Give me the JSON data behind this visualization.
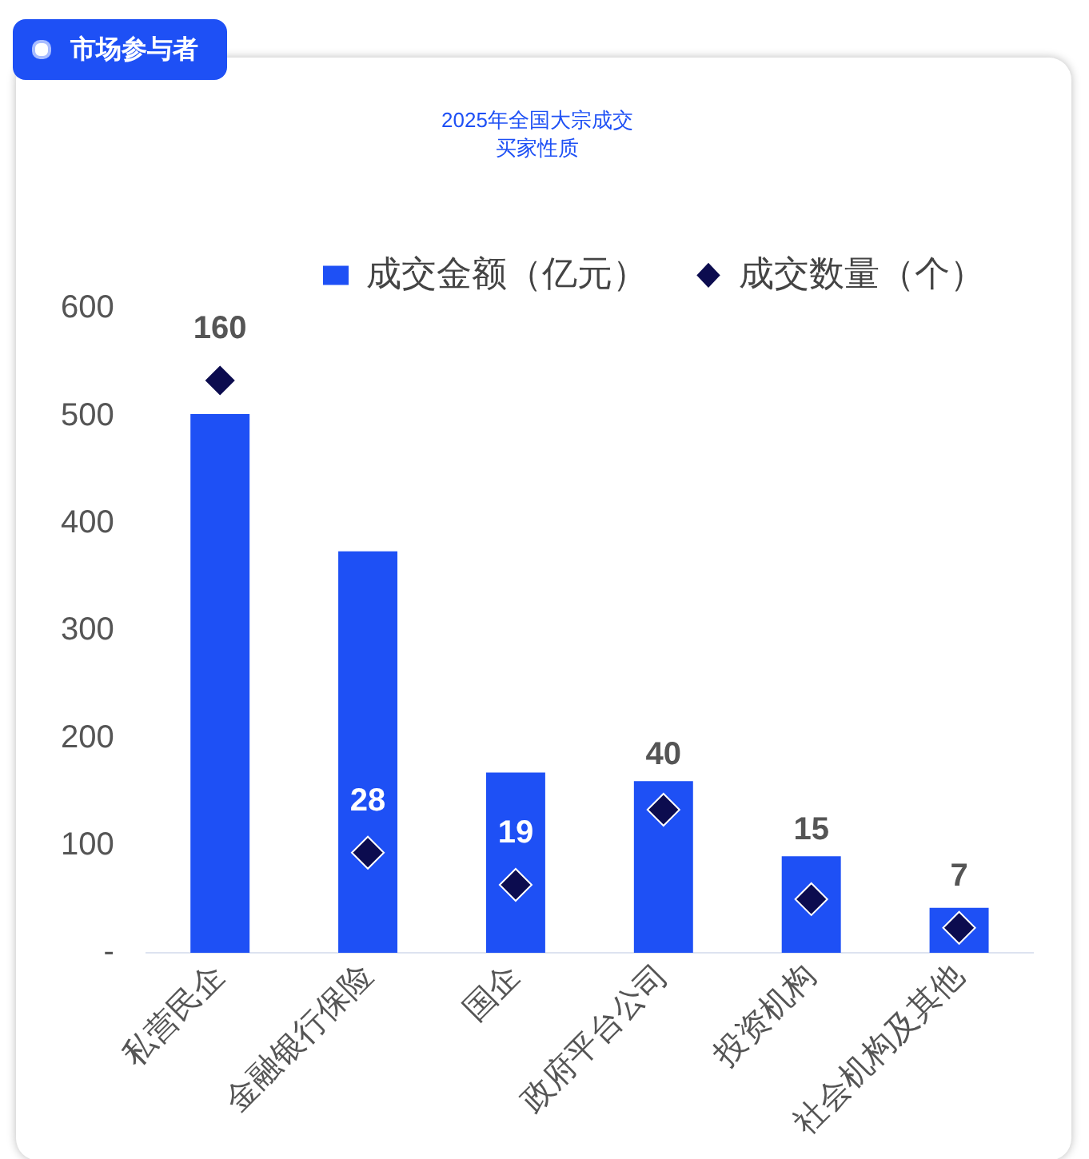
{
  "chart_data": {
    "type": "bar",
    "title": "2025年全国大宗成交",
    "subtitle": "买家性质",
    "annotations": [
      "市场参与者"
    ],
    "categories": [
      "私营民企",
      "金融银行保险",
      "国企",
      "政府平台公司",
      "投资机构",
      "社会机构及其他"
    ],
    "series": [
      {
        "name": "成交金额（亿元）",
        "color": "#1e50f5",
        "values": [
          502,
          374,
          168,
          160,
          90,
          42
        ]
      },
      {
        "name": "成交数量（个）",
        "type": "scatter",
        "axis": "y2",
        "color": "#0c0c4f",
        "values": [
          160,
          28,
          19,
          40,
          15,
          7
        ],
        "value_labels": [
          "160",
          "28",
          "19",
          "40",
          "15",
          "7"
        ]
      }
    ],
    "ylim": [
      0,
      600
    ],
    "yticks": [
      {
        "value": 0,
        "label": "-"
      },
      100,
      200,
      300,
      400,
      500,
      600
    ],
    "grid": false,
    "legend": "top",
    "marker": "diamond"
  }
}
